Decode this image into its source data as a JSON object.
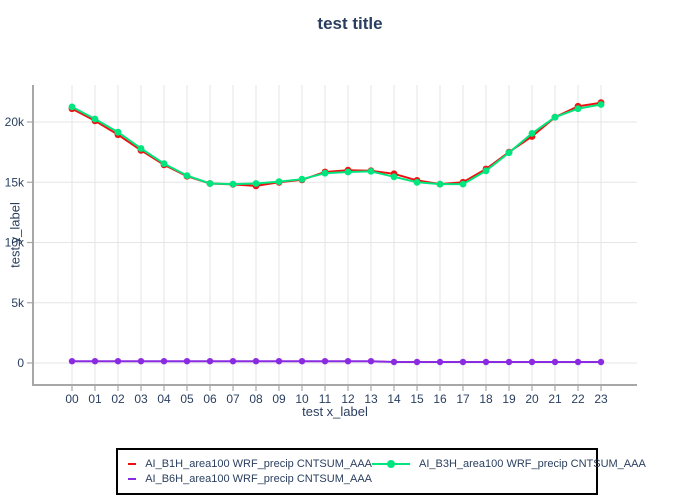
{
  "chart_data": {
    "type": "line",
    "title": "test title",
    "xlabel": "test x_label",
    "ylabel": "test y_label",
    "categories": [
      "00",
      "01",
      "02",
      "03",
      "04",
      "05",
      "06",
      "07",
      "08",
      "09",
      "10",
      "11",
      "12",
      "13",
      "14",
      "15",
      "16",
      "17",
      "18",
      "19",
      "20",
      "21",
      "22",
      "23"
    ],
    "series": [
      {
        "name": "AI_B1H_area100 WRF_precip CNTSUM_AAA",
        "color": "#ee1111",
        "values": [
          21100,
          20100,
          18950,
          17650,
          16450,
          15500,
          14900,
          14820,
          14700,
          15000,
          15200,
          15850,
          16000,
          15950,
          15700,
          15150,
          14850,
          15000,
          16100,
          17500,
          18800,
          20400,
          21300,
          21600
        ]
      },
      {
        "name": "AI_B3H_area100 WRF_precip CNTSUM_AAA",
        "color": "#00e57e",
        "values": [
          21250,
          20250,
          19150,
          17800,
          16550,
          15550,
          14900,
          14850,
          14900,
          15050,
          15250,
          15750,
          15850,
          15900,
          15450,
          15000,
          14850,
          14850,
          15950,
          17450,
          19050,
          20400,
          21100,
          21450
        ]
      },
      {
        "name": "AI_B6H_area100 WRF_precip CNTSUM_AAA",
        "color": "#8a2be2",
        "values": [
          150,
          150,
          150,
          150,
          150,
          150,
          150,
          150,
          150,
          150,
          150,
          150,
          150,
          150,
          80,
          80,
          80,
          80,
          80,
          80,
          80,
          80,
          80,
          80
        ]
      }
    ],
    "yticks": {
      "values": [
        0,
        5000,
        10000,
        15000,
        20000
      ],
      "labels": [
        "0",
        "5k",
        "10k",
        "15k",
        "20k"
      ]
    },
    "ylim": [
      -1800,
      23000
    ],
    "grid": true,
    "legend_position": "bottom-center",
    "colors": {
      "title_text": "#2a3f5f",
      "tick_text": "#2a3f5f",
      "axis_line": "#a7a7a7",
      "gridline": "#e5e5e5",
      "legend_border": "#000000",
      "background": "#ffffff"
    }
  }
}
